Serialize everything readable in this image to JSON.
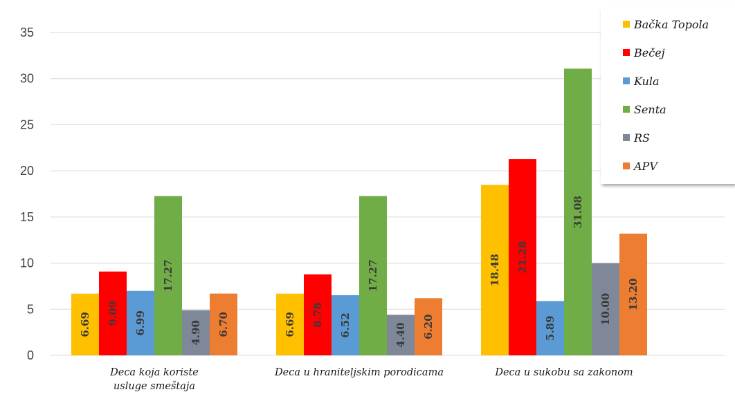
{
  "chart_data": {
    "type": "bar",
    "title": "",
    "xlabel": "",
    "ylabel": "",
    "ylim": [
      0,
      35
    ],
    "yticks": [
      0,
      5,
      10,
      15,
      20,
      25,
      30,
      35
    ],
    "grid": true,
    "legend_position": "top-right",
    "categories": [
      [
        "Deca koja koriste",
        "usluge smeštaja"
      ],
      [
        "Deca u hraniteljskim porodicama"
      ],
      [
        "Deca u sukobu sa zakonom"
      ]
    ],
    "series": [
      {
        "name": "Bačka Topola",
        "color": "#FFC000",
        "values": [
          6.69,
          6.69,
          18.48
        ],
        "labels": [
          "6.69",
          "6.69",
          "18.48"
        ]
      },
      {
        "name": "Bečej",
        "color": "#FF0000",
        "values": [
          9.09,
          8.78,
          21.28
        ],
        "labels": [
          "9.09",
          "8.78",
          "21.28"
        ]
      },
      {
        "name": "Kula",
        "color": "#5B9BD5",
        "values": [
          6.99,
          6.52,
          5.89
        ],
        "labels": [
          "6.99",
          "6.52",
          "5.89"
        ]
      },
      {
        "name": "Senta",
        "color": "#70AD47",
        "values": [
          17.27,
          17.27,
          31.08
        ],
        "labels": [
          "17.27",
          "17.27",
          "31.08"
        ]
      },
      {
        "name": "RS",
        "color": "#7F8899",
        "values": [
          4.9,
          4.4,
          10.0
        ],
        "labels": [
          "4.90",
          "4.40",
          "10.00"
        ]
      },
      {
        "name": "APV",
        "color": "#ED7D31",
        "values": [
          6.7,
          6.2,
          13.2
        ],
        "labels": [
          "6.70",
          "6.20",
          "13.20"
        ]
      }
    ]
  }
}
